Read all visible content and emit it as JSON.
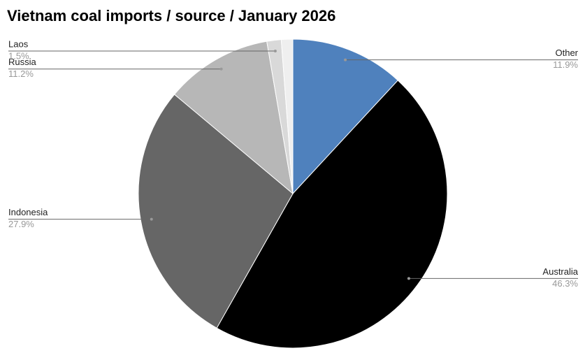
{
  "chart_data": {
    "type": "pie",
    "title": "Vietnam coal imports / source / January 2026",
    "categories": [
      "Other",
      "Australia",
      "Indonesia",
      "Russia",
      "Laos",
      null
    ],
    "values": [
      11.9,
      46.3,
      27.9,
      11.2,
      1.5,
      1.2
    ],
    "value_labels": [
      "11.9%",
      "46.3%",
      "27.9%",
      "11.2%",
      "1.5%",
      null
    ],
    "colors": [
      "#4f81bd",
      "#000000",
      "#666666",
      "#b7b7b7",
      "#d9d9d9",
      "#efefef"
    ]
  }
}
